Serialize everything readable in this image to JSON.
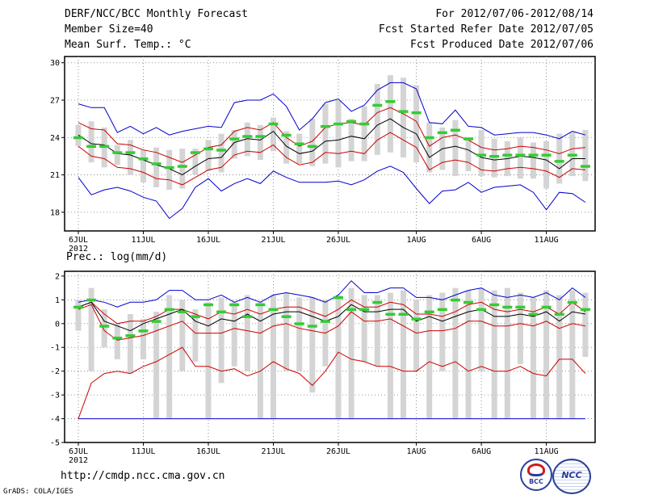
{
  "header": {
    "title": "DERF/NCC/BCC Monthly Forecast",
    "member_size": "Member Size=40",
    "variable": "Mean Surf. Temp.: °C",
    "period": "For 2012/07/06-2012/08/14",
    "started": "Fcst Started Refer Date 2012/07/05",
    "produced": "Fcst Produced Date 2012/07/06"
  },
  "footer": {
    "url": "http://cmdp.ncc.cma.gov.cn",
    "grads": "GrADS: COLA/IGES",
    "logo_bcc": "BCC",
    "logo_ncc": "NCC"
  },
  "colors": {
    "max_min": "#0000cc",
    "spread": "#cc0000",
    "mean": "#000000",
    "obs_bar": "#33cc33",
    "box": "#d4d4d4"
  },
  "chart_data": [
    {
      "type": "line",
      "title": "Mean Surf. Temp.: °C",
      "x_tick_labels": [
        "6JUL",
        "11JUL",
        "16JUL",
        "21JUL",
        "26JUL",
        "1AUG",
        "6AUG",
        "11AUG"
      ],
      "x_tick_day_index": [
        0,
        5,
        10,
        15,
        20,
        26,
        31,
        36
      ],
      "year_label": "2012",
      "ylim": [
        16.5,
        30.5
      ],
      "yticks": [
        18,
        21,
        24,
        27,
        30
      ],
      "days": 40,
      "series": [
        {
          "name": "max",
          "values": [
            26.7,
            26.4,
            26.4,
            24.4,
            24.9,
            24.3,
            24.8,
            24.2,
            24.5,
            24.7,
            24.9,
            24.8,
            26.8,
            27.0,
            27.0,
            27.5,
            26.5,
            24.6,
            25.5,
            26.8,
            27.1,
            26.1,
            26.6,
            27.8,
            28.4,
            28.4,
            27.9,
            25.2,
            25.1,
            26.2,
            24.9,
            24.8,
            24.2,
            24.3,
            24.4,
            24.4,
            24.2,
            23.9,
            24.5,
            24.2
          ]
        },
        {
          "name": "upper",
          "values": [
            25.2,
            24.7,
            24.6,
            23.5,
            23.4,
            23.0,
            22.8,
            22.4,
            22.0,
            22.6,
            23.2,
            23.4,
            24.5,
            24.8,
            24.6,
            25.2,
            24.0,
            23.3,
            23.7,
            24.8,
            25.1,
            25.2,
            25.0,
            26.0,
            26.4,
            25.9,
            25.3,
            23.3,
            24.0,
            24.2,
            23.8,
            23.2,
            23.0,
            23.1,
            23.3,
            23.2,
            23.0,
            22.7,
            23.1,
            23.2
          ]
        },
        {
          "name": "mean",
          "values": [
            24.2,
            23.5,
            23.4,
            22.7,
            22.6,
            22.2,
            21.8,
            21.5,
            21.0,
            21.7,
            22.3,
            22.4,
            23.6,
            23.9,
            23.8,
            24.5,
            23.3,
            22.7,
            22.9,
            23.7,
            23.8,
            24.1,
            23.9,
            25.0,
            25.5,
            24.8,
            24.3,
            22.4,
            23.1,
            23.3,
            23.0,
            22.4,
            22.2,
            22.3,
            22.5,
            22.4,
            22.2,
            21.5,
            22.3,
            22.3
          ]
        },
        {
          "name": "lower",
          "values": [
            23.3,
            22.5,
            22.3,
            21.6,
            21.5,
            21.2,
            20.7,
            20.6,
            20.2,
            20.8,
            21.4,
            21.6,
            22.6,
            22.9,
            22.8,
            23.4,
            22.4,
            21.8,
            22.0,
            22.8,
            22.7,
            22.9,
            22.7,
            23.8,
            24.4,
            23.8,
            23.2,
            21.4,
            22.0,
            22.2,
            22.0,
            21.4,
            21.3,
            21.5,
            21.6,
            21.5,
            21.3,
            20.8,
            21.5,
            21.4
          ]
        },
        {
          "name": "min",
          "values": [
            20.8,
            19.4,
            19.8,
            20.0,
            19.7,
            19.2,
            18.9,
            17.5,
            18.3,
            20.0,
            20.7,
            19.7,
            20.3,
            20.7,
            20.3,
            21.3,
            20.8,
            20.4,
            20.4,
            20.4,
            20.5,
            20.2,
            20.6,
            21.3,
            21.7,
            21.2,
            19.9,
            18.7,
            19.7,
            19.8,
            20.4,
            19.6,
            20.0,
            20.1,
            20.2,
            19.6,
            18.2,
            19.6,
            19.5,
            18.8
          ]
        },
        {
          "name": "observed",
          "values": [
            24.0,
            23.3,
            23.3,
            22.8,
            22.8,
            22.3,
            21.9,
            21.6,
            21.7,
            22.8,
            23.1,
            23.0,
            23.9,
            24.1,
            24.1,
            25.1,
            24.2,
            23.5,
            23.3,
            24.9,
            25.1,
            25.3,
            25.1,
            26.6,
            26.9,
            26.1,
            26.0,
            24.0,
            24.4,
            24.6,
            23.9,
            22.6,
            22.5,
            22.6,
            22.6,
            22.6,
            22.6,
            22.1,
            22.6,
            21.7
          ]
        },
        {
          "name": "box_top",
          "values": [
            25.0,
            25.3,
            24.8,
            23.4,
            23.8,
            23.0,
            23.2,
            23.0,
            23.1,
            23.1,
            23.8,
            24.3,
            24.6,
            25.2,
            25.0,
            25.6,
            24.5,
            24.3,
            25.5,
            26.7,
            27.0,
            25.5,
            26.5,
            28.3,
            29.0,
            28.8,
            28.2,
            25.2,
            24.8,
            25.4,
            24.0,
            24.6,
            23.9,
            23.7,
            24.0,
            23.6,
            23.7,
            24.3,
            24.4,
            24.6
          ]
        },
        {
          "name": "box_bottom",
          "values": [
            23.3,
            22.0,
            21.6,
            21.8,
            21.0,
            20.4,
            20.0,
            19.8,
            19.9,
            21.0,
            21.3,
            21.2,
            22.3,
            22.5,
            22.2,
            22.9,
            21.9,
            21.9,
            21.7,
            21.9,
            21.6,
            22.1,
            22.1,
            22.6,
            22.8,
            22.4,
            22.0,
            21.2,
            21.4,
            20.9,
            21.3,
            20.9,
            20.8,
            20.9,
            20.7,
            20.7,
            19.9,
            20.3,
            20.9,
            20.5
          ]
        }
      ]
    },
    {
      "type": "line",
      "title": "Prec.: log(mm/d)",
      "x_tick_labels": [
        "6JUL",
        "11JUL",
        "16JUL",
        "21JUL",
        "26JUL",
        "1AUG",
        "6AUG",
        "11AUG"
      ],
      "x_tick_day_index": [
        0,
        5,
        10,
        15,
        20,
        26,
        31,
        36
      ],
      "year_label": "2012",
      "ylim": [
        -5,
        2.2
      ],
      "yticks": [
        -5,
        -4,
        -3,
        -2,
        -1,
        0,
        1,
        2
      ],
      "days": 40,
      "series": [
        {
          "name": "max",
          "values": [
            0.9,
            1.0,
            0.9,
            0.7,
            0.9,
            0.9,
            1.0,
            1.4,
            1.4,
            1.0,
            1.0,
            1.2,
            0.9,
            1.1,
            0.9,
            1.2,
            1.3,
            1.2,
            1.1,
            0.9,
            1.2,
            1.8,
            1.3,
            1.3,
            1.5,
            1.5,
            1.1,
            1.1,
            1.0,
            1.2,
            1.4,
            1.5,
            1.2,
            1.1,
            1.2,
            1.1,
            1.3,
            1.0,
            1.5,
            1.1
          ]
        },
        {
          "name": "upper",
          "values": [
            0.7,
            0.9,
            0.4,
            0.0,
            0.1,
            0.1,
            0.3,
            0.6,
            0.6,
            0.4,
            0.2,
            0.5,
            0.4,
            0.6,
            0.4,
            0.6,
            0.7,
            0.7,
            0.5,
            0.3,
            0.6,
            1.0,
            0.7,
            0.7,
            0.9,
            0.8,
            0.4,
            0.4,
            0.3,
            0.5,
            0.8,
            0.9,
            0.6,
            0.5,
            0.6,
            0.5,
            0.7,
            0.4,
            0.9,
            0.5
          ]
        },
        {
          "name": "mean",
          "values": [
            0.7,
            0.9,
            0.1,
            -0.1,
            -0.3,
            0.0,
            0.2,
            0.4,
            0.6,
            0.1,
            -0.1,
            0.2,
            0.1,
            0.4,
            0.1,
            0.4,
            0.5,
            0.5,
            0.3,
            0.1,
            0.3,
            0.8,
            0.5,
            0.5,
            0.6,
            0.6,
            0.1,
            0.3,
            0.1,
            0.3,
            0.5,
            0.6,
            0.3,
            0.3,
            0.4,
            0.3,
            0.5,
            0.1,
            0.5,
            0.4
          ]
        },
        {
          "name": "lower",
          "values": [
            0.6,
            0.8,
            -0.3,
            -0.7,
            -0.6,
            -0.5,
            -0.3,
            -0.1,
            0.1,
            -0.4,
            -0.4,
            -0.4,
            -0.2,
            -0.3,
            -0.4,
            -0.1,
            0.0,
            -0.2,
            -0.3,
            -0.4,
            -0.1,
            0.5,
            0.1,
            0.1,
            0.2,
            -0.1,
            -0.4,
            -0.3,
            -0.3,
            -0.2,
            0.1,
            0.1,
            -0.1,
            -0.1,
            0.0,
            -0.1,
            0.1,
            -0.2,
            0.0,
            -0.1
          ]
        },
        {
          "name": "min",
          "values": [
            -4.0,
            -2.5,
            -2.1,
            -2.0,
            -2.1,
            -1.8,
            -1.6,
            -1.3,
            -1.0,
            -1.8,
            -1.8,
            -2.0,
            -1.9,
            -2.2,
            -2.0,
            -1.6,
            -1.9,
            -2.1,
            -2.6,
            -2.0,
            -1.2,
            -1.5,
            -1.6,
            -1.8,
            -1.8,
            -2.0,
            -2.0,
            -1.6,
            -1.8,
            -1.6,
            -2.0,
            -1.8,
            -2.0,
            -2.0,
            -1.8,
            -2.1,
            -2.2,
            -1.5,
            -1.5,
            -2.1
          ]
        },
        {
          "name": "floor",
          "values": [
            -4.0,
            -4.0,
            -4.0,
            -4.0,
            -4.0,
            -4.0,
            -4.0,
            -4.0,
            -4.0,
            -4.0,
            -4.0,
            -4.0,
            -4.0,
            -4.0,
            -4.0,
            -4.0,
            -4.0,
            -4.0,
            -4.0,
            -4.0,
            -4.0,
            -4.0,
            -4.0,
            -4.0,
            -4.0,
            -4.0,
            -4.0,
            -4.0,
            -4.0,
            -4.0,
            -4.0,
            -4.0,
            -4.0,
            -4.0,
            -4.0,
            -4.0,
            -4.0,
            -4.0,
            -4.0,
            -4.0
          ]
        },
        {
          "name": "observed",
          "values": [
            0.7,
            1.0,
            -0.1,
            -0.6,
            -0.5,
            -0.3,
            0.1,
            0.6,
            0.5,
            0.3,
            0.8,
            0.5,
            0.8,
            0.3,
            0.8,
            0.6,
            0.3,
            0.0,
            -0.1,
            0.1,
            1.1,
            0.6,
            0.6,
            0.9,
            0.4,
            0.4,
            0.2,
            0.5,
            0.6,
            1.0,
            0.9,
            0.6,
            0.8,
            0.7,
            0.7,
            0.4,
            0.7,
            0.4,
            0.9,
            0.6
          ]
        },
        {
          "name": "box_top",
          "values": [
            1.0,
            1.5,
            0.6,
            0.0,
            0.4,
            0.2,
            0.5,
            1.2,
            1.0,
            0.6,
            0.9,
            1.1,
            0.9,
            1.2,
            0.9,
            1.2,
            1.3,
            1.1,
            1.1,
            1.0,
            1.2,
            1.5,
            1.2,
            1.2,
            1.3,
            1.4,
            1.0,
            1.2,
            1.3,
            1.5,
            1.4,
            1.5,
            1.4,
            1.5,
            1.3,
            1.1,
            1.4,
            1.2,
            1.4,
            1.3
          ]
        },
        {
          "name": "box_bottom",
          "values": [
            -0.3,
            -2.0,
            -1.0,
            -1.5,
            -2.1,
            -1.5,
            -4.0,
            -4.0,
            -2.0,
            -1.6,
            -4.0,
            -2.5,
            -1.8,
            -2.0,
            -4.0,
            -4.0,
            -2.0,
            -2.0,
            -2.9,
            -1.8,
            -4.0,
            -4.0,
            -1.6,
            -1.8,
            -4.0,
            -4.0,
            -2.0,
            -4.0,
            -2.0,
            -4.0,
            -4.0,
            -2.0,
            -4.0,
            -4.0,
            -1.7,
            -4.0,
            -4.0,
            -4.0,
            -4.0,
            -1.4
          ]
        }
      ]
    }
  ]
}
